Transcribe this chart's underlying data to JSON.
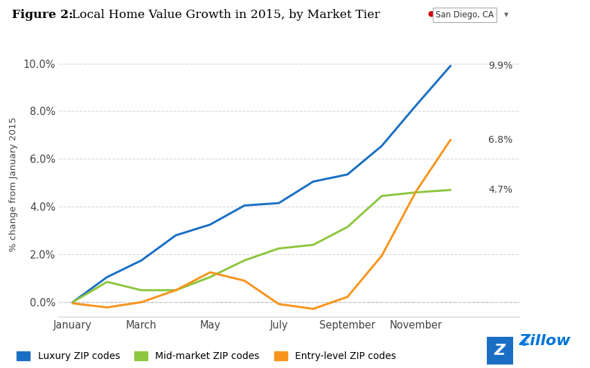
{
  "title_bold": "Figure 2:",
  "title_regular": " Local Home Value Growth in 2015, by Market Tier",
  "subtitle_label": "San Diego, CA",
  "ylabel": "% change from January 2015",
  "background_color": "#ffffff",
  "plot_bg_color": "#ffffff",
  "x_labels": [
    "January",
    "March",
    "May",
    "July",
    "September",
    "November"
  ],
  "x_ticks": [
    0,
    2,
    4,
    6,
    8,
    10
  ],
  "ylim": [
    -0.6,
    10.5
  ],
  "yticks": [
    0.0,
    2.0,
    4.0,
    6.0,
    8.0,
    10.0
  ],
  "ytick_labels": [
    "0.0%",
    "2.0%",
    "4.0%",
    "6.0%",
    "8.0%",
    "10.0%"
  ],
  "luxury": {
    "label": "Luxury ZIP codes",
    "color": "#1a6fc4",
    "values": [
      0.0,
      1.05,
      1.75,
      2.8,
      3.25,
      4.05,
      4.15,
      5.05,
      5.35,
      6.55,
      8.25,
      9.9
    ],
    "end_label": "9.9%"
  },
  "midmarket": {
    "label": "Mid-market ZIP codes",
    "color": "#8dc63f",
    "values": [
      0.0,
      0.85,
      0.5,
      0.5,
      1.05,
      1.75,
      2.25,
      2.4,
      3.15,
      4.45,
      4.6,
      4.7
    ],
    "end_label": "4.7%"
  },
  "entry": {
    "label": "Entry-level ZIP codes",
    "color": "#f7941d",
    "values": [
      -0.05,
      -0.22,
      0.0,
      0.5,
      1.25,
      0.9,
      -0.08,
      -0.28,
      0.22,
      1.95,
      4.65,
      6.8
    ],
    "end_label": "6.8%"
  },
  "grid_color": "#d8d8d8",
  "tick_color": "#444444",
  "spine_color": "#cccccc",
  "zeroline_color": "#aaaaaa"
}
